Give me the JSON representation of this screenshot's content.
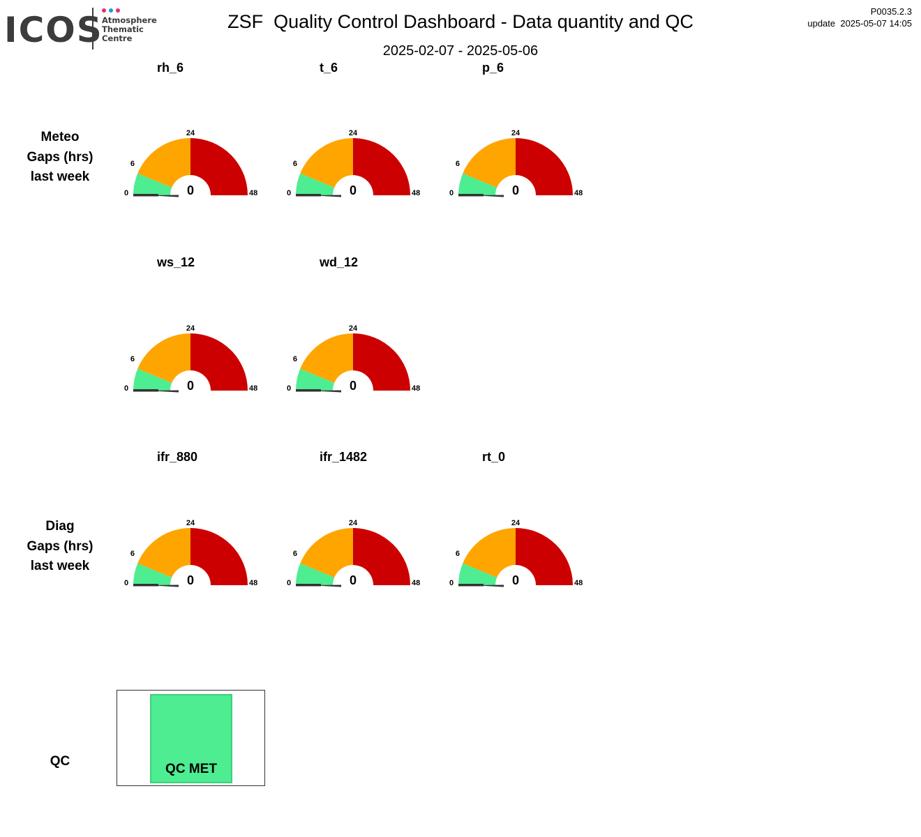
{
  "header": {
    "logo": {
      "wordmark": "ICOS",
      "line1": "Atmosphere",
      "line2": "Thematic",
      "line3": "Centre",
      "dot_colors": [
        "#e6306e",
        "#1e9ad6",
        "#e6306e"
      ]
    },
    "title": "ZSF  Quality Control Dashboard - Data quantity and QC",
    "date_range": "2025-02-07 - 2025-05-06",
    "version": "P0035.2.3",
    "update": "update  2025-05-07 14:05"
  },
  "rows": {
    "meteo": {
      "line1": "Meteo",
      "line2": "Gaps (hrs)",
      "line3": "last week"
    },
    "diag": {
      "line1": "Diag",
      "line2": "Gaps (hrs)",
      "line3": "last week"
    },
    "qc": "QC"
  },
  "colors": {
    "green": "#4eed92",
    "orange": "#ffa500",
    "red": "#cc0000",
    "needle": "#333333"
  },
  "chart_data": [
    {
      "type": "gauge",
      "title": "rh_6",
      "value": 0,
      "value_label": "0",
      "range": [
        0,
        48
      ],
      "bands": [
        {
          "from": 0,
          "to": 6,
          "color": "#4eed92"
        },
        {
          "from": 6,
          "to": 24,
          "color": "#ffa500"
        },
        {
          "from": 24,
          "to": 48,
          "color": "#cc0000"
        }
      ],
      "tick_labels": [
        "0",
        "6",
        "24",
        "48"
      ]
    },
    {
      "type": "gauge",
      "title": "t_6",
      "value": 0,
      "value_label": "0",
      "range": [
        0,
        48
      ],
      "bands": [
        {
          "from": 0,
          "to": 6,
          "color": "#4eed92"
        },
        {
          "from": 6,
          "to": 24,
          "color": "#ffa500"
        },
        {
          "from": 24,
          "to": 48,
          "color": "#cc0000"
        }
      ],
      "tick_labels": [
        "0",
        "6",
        "24",
        "48"
      ]
    },
    {
      "type": "gauge",
      "title": "p_6",
      "value": 0,
      "value_label": "0",
      "range": [
        0,
        48
      ],
      "bands": [
        {
          "from": 0,
          "to": 6,
          "color": "#4eed92"
        },
        {
          "from": 6,
          "to": 24,
          "color": "#ffa500"
        },
        {
          "from": 24,
          "to": 48,
          "color": "#cc0000"
        }
      ],
      "tick_labels": [
        "0",
        "6",
        "24",
        "48"
      ]
    },
    {
      "type": "gauge",
      "title": "ws_12",
      "value": 0,
      "value_label": "0",
      "range": [
        0,
        48
      ],
      "bands": [
        {
          "from": 0,
          "to": 6,
          "color": "#4eed92"
        },
        {
          "from": 6,
          "to": 24,
          "color": "#ffa500"
        },
        {
          "from": 24,
          "to": 48,
          "color": "#cc0000"
        }
      ],
      "tick_labels": [
        "0",
        "6",
        "24",
        "48"
      ]
    },
    {
      "type": "gauge",
      "title": "wd_12",
      "value": 0,
      "value_label": "0",
      "range": [
        0,
        48
      ],
      "bands": [
        {
          "from": 0,
          "to": 6,
          "color": "#4eed92"
        },
        {
          "from": 6,
          "to": 24,
          "color": "#ffa500"
        },
        {
          "from": 24,
          "to": 48,
          "color": "#cc0000"
        }
      ],
      "tick_labels": [
        "0",
        "6",
        "24",
        "48"
      ]
    },
    {
      "type": "gauge",
      "title": "ifr_880",
      "value": 0,
      "value_label": "0",
      "range": [
        0,
        48
      ],
      "bands": [
        {
          "from": 0,
          "to": 6,
          "color": "#4eed92"
        },
        {
          "from": 6,
          "to": 24,
          "color": "#ffa500"
        },
        {
          "from": 24,
          "to": 48,
          "color": "#cc0000"
        }
      ],
      "tick_labels": [
        "0",
        "6",
        "24",
        "48"
      ]
    },
    {
      "type": "gauge",
      "title": "ifr_1482",
      "value": 0,
      "value_label": "0",
      "range": [
        0,
        48
      ],
      "bands": [
        {
          "from": 0,
          "to": 6,
          "color": "#4eed92"
        },
        {
          "from": 6,
          "to": 24,
          "color": "#ffa500"
        },
        {
          "from": 24,
          "to": 48,
          "color": "#cc0000"
        }
      ],
      "tick_labels": [
        "0",
        "6",
        "24",
        "48"
      ]
    },
    {
      "type": "gauge",
      "title": "rt_0",
      "value": 0,
      "value_label": "0",
      "range": [
        0,
        48
      ],
      "bands": [
        {
          "from": 0,
          "to": 6,
          "color": "#4eed92"
        },
        {
          "from": 6,
          "to": 24,
          "color": "#ffa500"
        },
        {
          "from": 24,
          "to": 48,
          "color": "#cc0000"
        }
      ],
      "tick_labels": [
        "0",
        "6",
        "24",
        "48"
      ]
    }
  ],
  "qc": {
    "status": "QC MET",
    "color": "#4eed92"
  }
}
